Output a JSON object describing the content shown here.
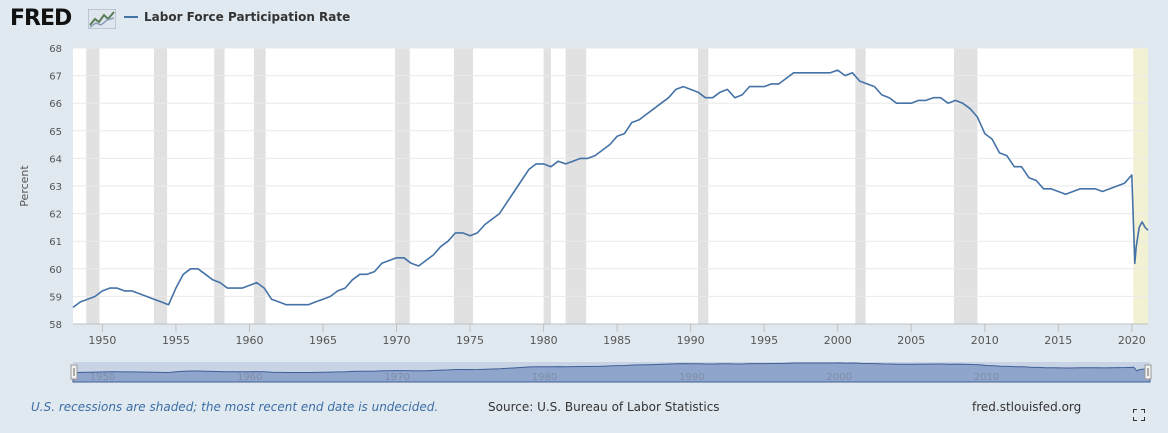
{
  "header": {
    "logo_text": "FRED",
    "series_label": "Labor Force Participation Rate"
  },
  "footer": {
    "note": "U.S. recessions are shaded; the most recent end date is undecided.",
    "source": "Source: U.S. Bureau of Labor Statistics",
    "site": "fred.stlouisfed.org"
  },
  "colors": {
    "line": "#4572a7",
    "recession": "#e1e1e1",
    "undecided_recession": "#f3f1d3",
    "page_bg": "#e1e9f0",
    "navigator_fill": "#b9c6e0"
  },
  "icons": [
    "fred-logo-chart-icon",
    "fullscreen-icon",
    "navigator-handle-icon"
  ],
  "chart_data": {
    "type": "line",
    "title": "",
    "xlabel": "",
    "ylabel": "Percent",
    "ylim": [
      58,
      68
    ],
    "xlim": [
      1948,
      2021.1
    ],
    "yticks": [
      58,
      59,
      60,
      61,
      62,
      63,
      64,
      65,
      66,
      67,
      68
    ],
    "xticks": [
      1950,
      1955,
      1960,
      1965,
      1970,
      1975,
      1980,
      1985,
      1990,
      1995,
      2000,
      2005,
      2010,
      2015,
      2020
    ],
    "ytick_labels": [
      "58",
      "59",
      "60",
      "61",
      "62",
      "63",
      "64",
      "65",
      "66",
      "67",
      "68"
    ],
    "xtick_labels": [
      "1950",
      "1955",
      "1960",
      "1965",
      "1970",
      "1975",
      "1980",
      "1985",
      "1990",
      "1995",
      "2000",
      "2005",
      "2010",
      "2015",
      "2020"
    ],
    "navigator_tick_labels": [
      "1950",
      "1960",
      "1970",
      "1980",
      "1990",
      "2000",
      "2010"
    ],
    "grid": true,
    "legend": "top-left",
    "recessions": [
      [
        1948.9,
        1949.8
      ],
      [
        1953.5,
        1954.4
      ],
      [
        1957.6,
        1958.3
      ],
      [
        1960.3,
        1961.1
      ],
      [
        1969.9,
        1970.9
      ],
      [
        1973.9,
        1975.2
      ],
      [
        1980.0,
        1980.5
      ],
      [
        1981.5,
        1982.9
      ],
      [
        1990.5,
        1991.2
      ],
      [
        2001.2,
        2001.9
      ],
      [
        2007.9,
        2009.5
      ]
    ],
    "undecided_recession": [
      2020.1,
      2021.1
    ],
    "series": [
      {
        "name": "Labor Force Participation Rate",
        "x": [
          1948.0,
          1948.5,
          1949.0,
          1949.5,
          1950.0,
          1950.5,
          1951.0,
          1951.5,
          1952.0,
          1952.5,
          1953.0,
          1953.5,
          1954.0,
          1954.5,
          1955.0,
          1955.5,
          1956.0,
          1956.5,
          1957.0,
          1957.5,
          1958.0,
          1958.5,
          1959.0,
          1959.5,
          1960.0,
          1960.5,
          1961.0,
          1961.5,
          1962.0,
          1962.5,
          1963.0,
          1963.5,
          1964.0,
          1964.5,
          1965.0,
          1965.5,
          1966.0,
          1966.5,
          1967.0,
          1967.5,
          1968.0,
          1968.5,
          1969.0,
          1969.5,
          1970.0,
          1970.5,
          1971.0,
          1971.5,
          1972.0,
          1972.5,
          1973.0,
          1973.5,
          1974.0,
          1974.5,
          1975.0,
          1975.5,
          1976.0,
          1976.5,
          1977.0,
          1977.5,
          1978.0,
          1978.5,
          1979.0,
          1979.5,
          1980.0,
          1980.5,
          1981.0,
          1981.5,
          1982.0,
          1982.5,
          1983.0,
          1983.5,
          1984.0,
          1984.5,
          1985.0,
          1985.5,
          1986.0,
          1986.5,
          1987.0,
          1987.5,
          1988.0,
          1988.5,
          1989.0,
          1989.5,
          1990.0,
          1990.5,
          1991.0,
          1991.5,
          1992.0,
          1992.5,
          1993.0,
          1993.5,
          1994.0,
          1994.5,
          1995.0,
          1995.5,
          1996.0,
          1996.5,
          1997.0,
          1997.5,
          1998.0,
          1998.5,
          1999.0,
          1999.5,
          2000.0,
          2000.5,
          2001.0,
          2001.5,
          2002.0,
          2002.5,
          2003.0,
          2003.5,
          2004.0,
          2004.5,
          2005.0,
          2005.5,
          2006.0,
          2006.5,
          2007.0,
          2007.5,
          2008.0,
          2008.5,
          2009.0,
          2009.5,
          2010.0,
          2010.5,
          2011.0,
          2011.5,
          2012.0,
          2012.5,
          2013.0,
          2013.5,
          2014.0,
          2014.5,
          2015.0,
          2015.5,
          2016.0,
          2016.5,
          2017.0,
          2017.5,
          2018.0,
          2018.5,
          2019.0,
          2019.5,
          2020.0,
          2020.2,
          2020.3,
          2020.5,
          2020.7,
          2020.9,
          2021.1
        ],
        "values": [
          58.6,
          58.8,
          58.9,
          59.0,
          59.2,
          59.3,
          59.3,
          59.2,
          59.2,
          59.1,
          59.0,
          58.9,
          58.8,
          58.7,
          59.3,
          59.8,
          60.0,
          60.0,
          59.8,
          59.6,
          59.5,
          59.3,
          59.3,
          59.3,
          59.4,
          59.5,
          59.3,
          58.9,
          58.8,
          58.7,
          58.7,
          58.7,
          58.7,
          58.8,
          58.9,
          59.0,
          59.2,
          59.3,
          59.6,
          59.8,
          59.8,
          59.9,
          60.2,
          60.3,
          60.4,
          60.4,
          60.2,
          60.1,
          60.3,
          60.5,
          60.8,
          61.0,
          61.3,
          61.3,
          61.2,
          61.3,
          61.6,
          61.8,
          62.0,
          62.4,
          62.8,
          63.2,
          63.6,
          63.8,
          63.8,
          63.7,
          63.9,
          63.8,
          63.9,
          64.0,
          64.0,
          64.1,
          64.3,
          64.5,
          64.8,
          64.9,
          65.3,
          65.4,
          65.6,
          65.8,
          66.0,
          66.2,
          66.5,
          66.6,
          66.5,
          66.4,
          66.2,
          66.2,
          66.4,
          66.5,
          66.2,
          66.3,
          66.6,
          66.6,
          66.6,
          66.7,
          66.7,
          66.9,
          67.1,
          67.1,
          67.1,
          67.1,
          67.1,
          67.1,
          67.2,
          67.0,
          67.1,
          66.8,
          66.7,
          66.6,
          66.3,
          66.2,
          66.0,
          66.0,
          66.0,
          66.1,
          66.1,
          66.2,
          66.2,
          66.0,
          66.1,
          66.0,
          65.8,
          65.5,
          64.9,
          64.7,
          64.2,
          64.1,
          63.7,
          63.7,
          63.3,
          63.2,
          62.9,
          62.9,
          62.8,
          62.7,
          62.8,
          62.9,
          62.9,
          62.9,
          62.8,
          62.9,
          63.0,
          63.1,
          63.4,
          60.2,
          60.8,
          61.5,
          61.7,
          61.5,
          61.4
        ]
      }
    ]
  }
}
